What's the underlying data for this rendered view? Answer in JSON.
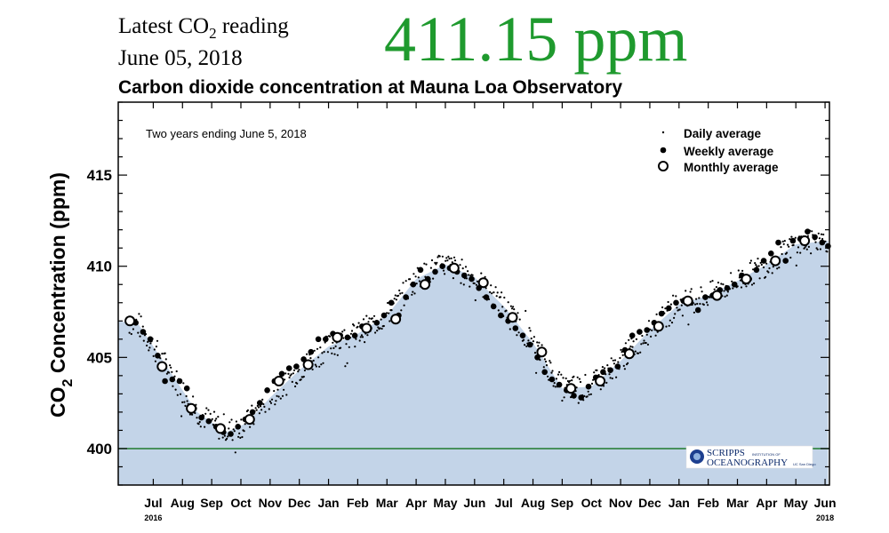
{
  "header": {
    "latest_prefix": "Latest CO",
    "latest_sub": "2",
    "latest_suffix": " reading",
    "date": "June 05, 2018",
    "value_text": "411.15 ppm",
    "value_color": "#1f9a2e"
  },
  "chart_data": {
    "type": "scatter",
    "title": "Carbon dioxide concentration at Mauna Loa Observatory",
    "annotation": "Two years ending June 5, 2018",
    "ylabel_prefix": "CO",
    "ylabel_sub": "2",
    "ylabel_suffix": " Concentration (ppm)",
    "ylim": [
      398,
      419
    ],
    "yticks": [
      400,
      405,
      410,
      415
    ],
    "months": [
      "Jul",
      "Aug",
      "Sep",
      "Oct",
      "Nov",
      "Dec",
      "Jan",
      "Feb",
      "Mar",
      "Apr",
      "May",
      "Jun",
      "Jul",
      "Aug",
      "Sep",
      "Oct",
      "Nov",
      "Dec",
      "Jan",
      "Feb",
      "Mar",
      "Apr",
      "May",
      "Jun"
    ],
    "year_labels": [
      {
        "label": "2016",
        "month_index": 0
      },
      {
        "label": "2018",
        "month_index": 23
      }
    ],
    "reference_line": {
      "value": 400,
      "color": "#1f7a2e"
    },
    "fill_color": "#c3d4e8",
    "legend": {
      "position": "top-right",
      "entries": [
        "Daily average",
        "Weekly average",
        "Monthly average"
      ]
    },
    "logo": {
      "line1": "SCRIPPS",
      "line1_small": "INSTITUTION OF",
      "line2": "OCEANOGRAPHY",
      "line2_small": "UC San Diego"
    },
    "monthly": {
      "x": [
        -0.8,
        0.3,
        1.3,
        2.3,
        3.3,
        4.3,
        5.3,
        6.3,
        7.3,
        8.3,
        9.3,
        10.3,
        11.3,
        12.3,
        13.3,
        14.3,
        15.3,
        16.3,
        17.3,
        18.3,
        19.3,
        20.3,
        21.3,
        22.3
      ],
      "values": [
        407.0,
        404.5,
        402.2,
        401.1,
        401.6,
        403.7,
        404.6,
        406.1,
        406.6,
        407.1,
        409.0,
        409.9,
        409.1,
        407.2,
        405.3,
        403.3,
        403.7,
        405.2,
        406.7,
        408.1,
        408.4,
        409.3,
        410.3,
        411.4
      ]
    },
    "weekly": {
      "x": [
        -0.85,
        -0.6,
        -0.35,
        -0.1,
        0.15,
        0.4,
        0.65,
        0.9,
        1.15,
        1.4,
        1.65,
        1.9,
        2.15,
        2.4,
        2.65,
        2.9,
        3.15,
        3.4,
        3.65,
        3.9,
        4.15,
        4.4,
        4.65,
        4.9,
        5.15,
        5.4,
        5.65,
        5.9,
        6.15,
        6.4,
        6.65,
        6.9,
        7.15,
        7.4,
        7.65,
        7.9,
        8.15,
        8.4,
        8.65,
        8.9,
        9.15,
        9.4,
        9.65,
        9.9,
        10.15,
        10.4,
        10.65,
        10.9,
        11.15,
        11.4,
        11.65,
        11.9,
        12.15,
        12.4,
        12.65,
        12.9,
        13.15,
        13.4,
        13.65,
        13.9,
        14.15,
        14.4,
        14.65,
        14.9,
        15.15,
        15.4,
        15.65,
        15.9,
        16.15,
        16.4,
        16.65,
        16.9,
        17.15,
        17.4,
        17.65,
        17.9,
        18.15,
        18.4,
        18.65,
        18.9,
        19.15,
        19.4,
        19.65,
        19.9,
        20.15,
        20.4,
        20.65,
        20.9,
        21.15,
        21.4,
        21.65,
        21.9,
        22.15,
        22.4,
        22.65,
        22.9,
        23.1
      ],
      "values": [
        407.0,
        406.9,
        406.4,
        406.0,
        405.1,
        403.7,
        403.8,
        403.7,
        403.3,
        402.2,
        401.7,
        401.5,
        401.2,
        400.9,
        400.8,
        401.2,
        401.6,
        402.0,
        402.5,
        403.2,
        403.7,
        404.1,
        404.4,
        404.5,
        404.9,
        405.3,
        406.0,
        406.0,
        406.3,
        406.2,
        406.1,
        406.2,
        406.7,
        406.6,
        406.9,
        407.3,
        408.0,
        407.3,
        408.3,
        409.0,
        409.8,
        409.3,
        409.7,
        410.0,
        409.9,
        409.7,
        409.5,
        409.3,
        408.8,
        408.3,
        407.8,
        407.3,
        407.0,
        406.6,
        406.2,
        405.7,
        405.0,
        404.2,
        403.8,
        403.5,
        403.2,
        402.9,
        402.8,
        403.4,
        403.9,
        404.2,
        404.3,
        404.5,
        405.4,
        406.2,
        406.4,
        406.5,
        406.9,
        407.4,
        407.7,
        408.0,
        408.1,
        408.0,
        407.6,
        408.3,
        408.4,
        408.7,
        408.8,
        409.0,
        409.5,
        409.3,
        409.8,
        410.3,
        410.7,
        411.3,
        410.3,
        411.4,
        411.5,
        411.9,
        411.6,
        411.3,
        411.1
      ]
    },
    "daily_trend": {
      "x": [
        -1.2,
        -0.5,
        0.5,
        1.5,
        2.5,
        3.2,
        4.0,
        5.0,
        6.0,
        7.0,
        8.0,
        9.0,
        10.0,
        11.0,
        12.0,
        13.0,
        14.0,
        15.0,
        16.0,
        17.0,
        18.0,
        19.0,
        20.0,
        21.0,
        22.0,
        23.1
      ],
      "values": [
        407.0,
        406.8,
        404.4,
        402.0,
        400.9,
        401.4,
        402.8,
        404.3,
        405.6,
        406.3,
        407.3,
        409.3,
        410.1,
        409.4,
        407.8,
        405.8,
        403.3,
        403.4,
        404.8,
        406.5,
        407.9,
        408.4,
        409.2,
        410.1,
        411.2,
        411.4
      ]
    }
  }
}
